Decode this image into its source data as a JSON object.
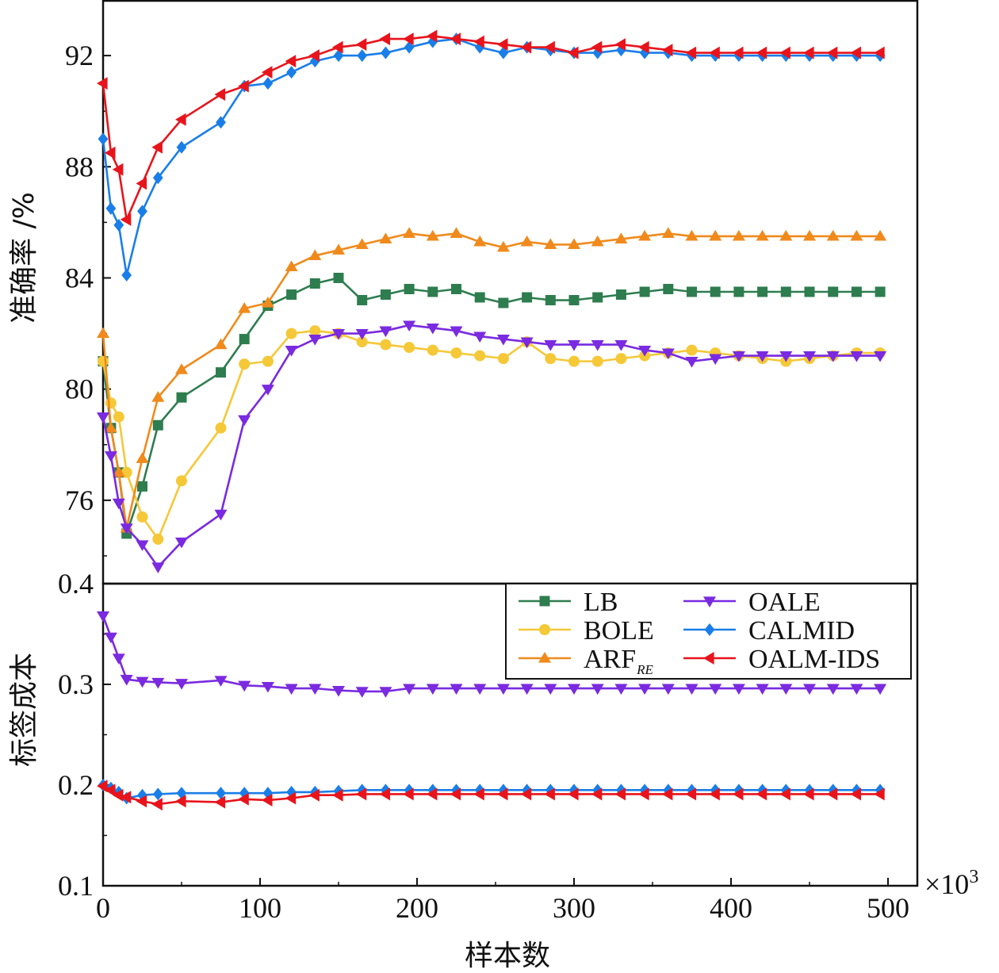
{
  "chart_data": {
    "type": "line",
    "xlabel": "样本数",
    "x_multiplier": {
      "base": "×10",
      "exp": "3"
    },
    "xlim": [
      0,
      500
    ],
    "xticks": [
      "0",
      "100",
      "200",
      "300",
      "400",
      "500"
    ],
    "x": [
      0,
      5,
      10,
      15,
      25,
      35,
      50,
      75,
      90,
      105,
      120,
      135,
      150,
      165,
      180,
      195,
      210,
      225,
      240,
      255,
      270,
      285,
      300,
      315,
      330,
      345,
      360,
      375,
      390,
      405,
      420,
      435,
      450,
      465,
      480,
      495
    ],
    "panels": [
      {
        "id": "accuracy",
        "ylabel": "准确率 /%",
        "ylim": [
          73,
          94
        ],
        "yticks": [
          "76",
          "80",
          "84",
          "88",
          "92"
        ],
        "series": [
          {
            "name": "LB",
            "values": [
              81,
              78.6,
              77,
              74.8,
              76.5,
              78.7,
              79.7,
              80.6,
              81.8,
              83,
              83.4,
              83.8,
              84,
              83.2,
              83.4,
              83.6,
              83.5,
              83.6,
              83.3,
              83.1,
              83.3,
              83.2,
              83.2,
              83.3,
              83.4,
              83.5,
              83.6,
              83.5,
              83.5,
              83.5,
              83.5,
              83.5,
              83.5,
              83.5,
              83.5,
              83.5
            ]
          },
          {
            "name": "BOLE",
            "values": [
              81,
              79.5,
              79,
              77,
              75.4,
              74.6,
              76.7,
              78.6,
              80.9,
              81,
              82,
              82.1,
              82,
              81.7,
              81.6,
              81.5,
              81.4,
              81.3,
              81.2,
              81.1,
              81.7,
              81.1,
              81,
              81,
              81.1,
              81.2,
              81.3,
              81.4,
              81.3,
              81.2,
              81.1,
              81,
              81.1,
              81.2,
              81.3,
              81.3
            ]
          },
          {
            "name": "ARF",
            "name_sub": "RE",
            "values": [
              82,
              78.6,
              77,
              75,
              77.5,
              79.7,
              80.7,
              81.6,
              82.9,
              83.1,
              84.4,
              84.8,
              85,
              85.2,
              85.4,
              85.6,
              85.5,
              85.6,
              85.3,
              85.1,
              85.3,
              85.2,
              85.2,
              85.3,
              85.4,
              85.5,
              85.6,
              85.5,
              85.5,
              85.5,
              85.5,
              85.5,
              85.5,
              85.5,
              85.5,
              85.5
            ]
          },
          {
            "name": "OALE",
            "values": [
              79,
              77.6,
              75.9,
              75,
              74.4,
              73.6,
              74.5,
              75.5,
              78.9,
              80,
              81.4,
              81.8,
              82,
              82,
              82.1,
              82.3,
              82.2,
              82.1,
              81.9,
              81.8,
              81.7,
              81.6,
              81.6,
              81.6,
              81.6,
              81.4,
              81.3,
              81,
              81.1,
              81.2,
              81.2,
              81.2,
              81.2,
              81.2,
              81.2,
              81.2
            ]
          },
          {
            "name": "CALMID",
            "values": [
              89,
              86.5,
              85.9,
              84.1,
              86.4,
              87.6,
              88.7,
              89.6,
              90.9,
              91,
              91.4,
              91.8,
              92,
              92,
              92.1,
              92.3,
              92.5,
              92.6,
              92.3,
              92.1,
              92.3,
              92.2,
              92.1,
              92.1,
              92.2,
              92.1,
              92.1,
              92,
              92,
              92,
              92,
              92,
              92,
              92,
              92,
              92
            ]
          },
          {
            "name": "OALM-IDS",
            "values": [
              91,
              88.5,
              87.9,
              86.1,
              87.4,
              88.7,
              89.7,
              90.6,
              90.9,
              91.4,
              91.8,
              92,
              92.3,
              92.4,
              92.6,
              92.6,
              92.7,
              92.6,
              92.5,
              92.4,
              92.3,
              92.3,
              92.1,
              92.3,
              92.4,
              92.3,
              92.2,
              92.1,
              92.1,
              92.1,
              92.1,
              92.1,
              92.1,
              92.1,
              92.1,
              92.1
            ]
          }
        ]
      },
      {
        "id": "label_cost",
        "ylabel": "标签成本",
        "ylim": [
          0.1,
          0.4
        ],
        "yticks": [
          "0.1",
          "0.2",
          "0.3",
          "0.4"
        ],
        "series": [
          {
            "name": "OALE",
            "values": [
              0.368,
              0.347,
              0.326,
              0.305,
              0.303,
              0.302,
              0.301,
              0.304,
              0.299,
              0.298,
              0.296,
              0.296,
              0.294,
              0.293,
              0.293,
              0.296,
              0.296,
              0.296,
              0.296,
              0.296,
              0.296,
              0.296,
              0.296,
              0.296,
              0.296,
              0.296,
              0.296,
              0.296,
              0.296,
              0.296,
              0.296,
              0.296,
              0.296,
              0.296,
              0.296,
              0.296
            ]
          },
          {
            "name": "CALMID",
            "values": [
              0.2,
              0.197,
              0.193,
              0.187,
              0.19,
              0.191,
              0.192,
              0.192,
              0.192,
              0.192,
              0.193,
              0.193,
              0.194,
              0.195,
              0.195,
              0.195,
              0.195,
              0.195,
              0.195,
              0.195,
              0.195,
              0.195,
              0.195,
              0.195,
              0.195,
              0.195,
              0.195,
              0.195,
              0.195,
              0.195,
              0.195,
              0.195,
              0.195,
              0.195,
              0.195,
              0.195
            ]
          },
          {
            "name": "OALM-IDS",
            "values": [
              0.199,
              0.195,
              0.19,
              0.188,
              0.184,
              0.181,
              0.184,
              0.183,
              0.186,
              0.185,
              0.187,
              0.19,
              0.19,
              0.191,
              0.191,
              0.191,
              0.191,
              0.191,
              0.191,
              0.191,
              0.191,
              0.191,
              0.191,
              0.191,
              0.191,
              0.191,
              0.191,
              0.191,
              0.191,
              0.191,
              0.191,
              0.191,
              0.191,
              0.191,
              0.191,
              0.191
            ]
          }
        ]
      }
    ],
    "legend": {
      "placement": "top-right of lower panel",
      "columns": 2
    },
    "styles": {
      "LB": {
        "color": "#2e7d4f",
        "marker": "square"
      },
      "BOLE": {
        "color": "#f5c838",
        "marker": "circle"
      },
      "ARF": {
        "color": "#f08a1c",
        "marker": "triangle-up"
      },
      "OALE": {
        "color": "#7a2ae0",
        "marker": "triangle-down"
      },
      "CALMID": {
        "color": "#1a7ee8",
        "marker": "diamond"
      },
      "OALM-IDS": {
        "color": "#e8141c",
        "marker": "triangle-left"
      }
    },
    "grid": false
  }
}
